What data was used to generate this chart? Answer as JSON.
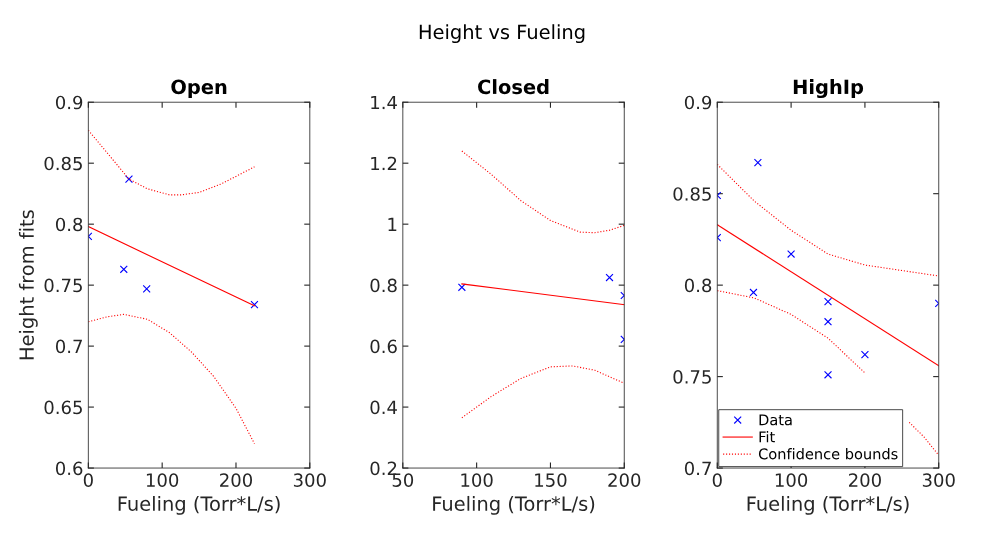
{
  "chart_data": [
    {
      "type": "scatter",
      "title": "Open",
      "xlabel": "Fueling (Torr*L/s)",
      "ylabel": "Height from fits",
      "annotations": [
        "Height vs Fueling"
      ],
      "xlim": [
        0,
        300
      ],
      "xticks": [
        0,
        100,
        200,
        300
      ],
      "ylim": [
        0.6,
        0.9
      ],
      "yticks": [
        0.6,
        0.65,
        0.7,
        0.75,
        0.8,
        0.85,
        0.9
      ],
      "grid": false,
      "legend": false,
      "series": [
        {
          "color": "#0000ff",
          "marker": "cross",
          "x": [
            0,
            55,
            48,
            79,
            225
          ],
          "values": [
            0.79,
            0.837,
            0.763,
            0.747,
            0.734
          ]
        },
        {
          "type": "line",
          "color": "#ff0000",
          "line_style": "solid",
          "marker": "none",
          "x": [
            0,
            225
          ],
          "values": [
            0.798,
            0.733
          ]
        },
        {
          "type": "line",
          "color": "#ff0000",
          "line_style": "dotted",
          "marker": "none",
          "x": [
            0,
            55,
            80,
            110,
            125,
            150,
            180,
            225
          ],
          "values": [
            0.877,
            0.837,
            0.829,
            0.824,
            0.824,
            0.826,
            0.833,
            0.847
          ]
        },
        {
          "type": "line",
          "color": "#ff0000",
          "line_style": "dotted",
          "marker": "none",
          "x": [
            0,
            25,
            48,
            80,
            110,
            140,
            170,
            200,
            225
          ],
          "values": [
            0.72,
            0.724,
            0.726,
            0.722,
            0.711,
            0.695,
            0.675,
            0.649,
            0.62
          ]
        }
      ]
    },
    {
      "type": "scatter",
      "title": "Closed",
      "xlabel": "Fueling (Torr*L/s)",
      "xlim": [
        50,
        200
      ],
      "xticks": [
        50,
        100,
        150,
        200
      ],
      "ylim": [
        0.2,
        1.4
      ],
      "yticks": [
        0.2,
        0.4,
        0.6,
        0.8,
        1,
        1.2,
        1.4
      ],
      "grid": false,
      "legend": false,
      "series": [
        {
          "color": "#0000ff",
          "marker": "cross",
          "x": [
            90,
            190,
            200,
            200
          ],
          "values": [
            0.793,
            0.825,
            0.766,
            0.622
          ]
        },
        {
          "type": "line",
          "color": "#ff0000",
          "line_style": "solid",
          "marker": "none",
          "x": [
            90,
            200
          ],
          "values": [
            0.804,
            0.736
          ]
        },
        {
          "type": "line",
          "color": "#ff0000",
          "line_style": "dotted",
          "marker": "none",
          "x": [
            90,
            110,
            130,
            150,
            170,
            180,
            190,
            200
          ],
          "values": [
            1.24,
            1.163,
            1.077,
            1.012,
            0.974,
            0.972,
            0.98,
            0.996
          ]
        },
        {
          "type": "line",
          "color": "#ff0000",
          "line_style": "dotted",
          "marker": "none",
          "x": [
            90,
            110,
            130,
            150,
            165,
            180,
            200
          ],
          "values": [
            0.365,
            0.435,
            0.494,
            0.532,
            0.535,
            0.521,
            0.478
          ]
        }
      ]
    },
    {
      "type": "scatter",
      "title": "HighIp",
      "xlabel": "Fueling (Torr*L/s)",
      "xlim": [
        0,
        300
      ],
      "xticks": [
        0,
        100,
        200,
        300
      ],
      "ylim": [
        0.7,
        0.9
      ],
      "yticks": [
        0.7,
        0.75,
        0.8,
        0.85,
        0.9
      ],
      "grid": false,
      "legend": "bottom left",
      "series": [
        {
          "name": "Data",
          "color": "#0000ff",
          "marker": "cross",
          "x": [
            0,
            0,
            55,
            49,
            100,
            150,
            150,
            150,
            200,
            300
          ],
          "values": [
            0.849,
            0.826,
            0.867,
            0.796,
            0.817,
            0.791,
            0.78,
            0.751,
            0.762,
            0.79
          ]
        },
        {
          "type": "line",
          "name": "Fit",
          "color": "#ff0000",
          "line_style": "solid",
          "marker": "none",
          "x": [
            0,
            300
          ],
          "values": [
            0.833,
            0.756
          ]
        },
        {
          "type": "line",
          "name": "Confidence bounds",
          "color": "#ff0000",
          "line_style": "dotted",
          "marker": "none",
          "x": [
            0,
            50,
            100,
            150,
            200,
            250,
            300
          ],
          "values": [
            0.866,
            0.846,
            0.83,
            0.817,
            0.811,
            0.808,
            0.805
          ]
        },
        {
          "type": "line",
          "color": "#ff0000",
          "line_style": "dotted",
          "marker": "none",
          "x": [
            0,
            50,
            100,
            150,
            200,
            230,
            260,
            280,
            300
          ],
          "values": [
            0.797,
            0.793,
            0.784,
            0.771,
            0.752,
            null,
            0.725,
            0.717,
            0.707
          ]
        }
      ]
    }
  ]
}
